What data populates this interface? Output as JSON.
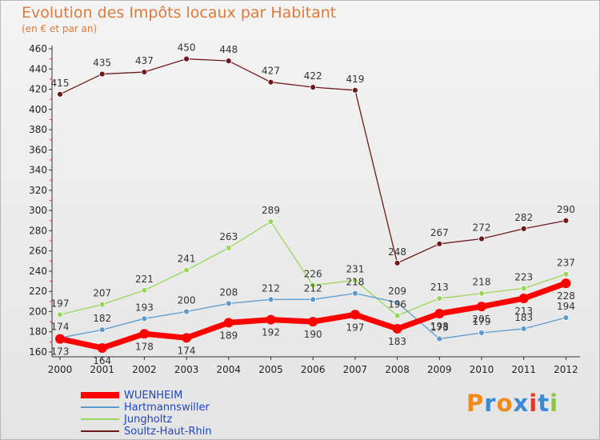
{
  "title": "Evolution des Impôts locaux par Habitant",
  "subtitle": "(en € et par an)",
  "logo": {
    "text": "Proxiti",
    "colors": [
      "#f08a1c",
      "#3a8ad6",
      "#f08a1c",
      "#3a8ad6",
      "#e23a2a",
      "#3a8ad6",
      "#8cc63e"
    ]
  },
  "chart_data": {
    "type": "line",
    "categories": [
      "2000",
      "2001",
      "2002",
      "2003",
      "2004",
      "2005",
      "2006",
      "2007",
      "2008",
      "2009",
      "2010",
      "2011",
      "2012"
    ],
    "ylim": [
      160,
      460
    ],
    "yticks": [
      160,
      180,
      200,
      220,
      240,
      260,
      280,
      300,
      320,
      340,
      360,
      380,
      400,
      420,
      440,
      460
    ],
    "grid": false,
    "legend_position": "bottom-left",
    "series": [
      {
        "name": "Soultz-Haut-Rhin",
        "color": "#6e1a1a",
        "values": [
          415,
          435,
          437,
          450,
          448,
          427,
          422,
          419,
          248,
          267,
          272,
          282,
          290
        ]
      },
      {
        "name": "Jungholtz",
        "color": "#9ad65a",
        "values": [
          197,
          207,
          221,
          241,
          263,
          289,
          226,
          231,
          196,
          213,
          218,
          223,
          237
        ]
      },
      {
        "name": "Hartmannswiller",
        "color": "#5b9bd0",
        "values": [
          174,
          182,
          193,
          200,
          208,
          212,
          212,
          218,
          209,
          173,
          179,
          183,
          194
        ]
      },
      {
        "name": "WUENHEIM",
        "color": "#ff0000",
        "values": [
          173,
          164,
          178,
          174,
          189,
          192,
          190,
          197,
          183,
          198,
          205,
          213,
          228
        ]
      }
    ]
  },
  "legend": [
    {
      "name": "WUENHEIM",
      "color": "#ff0000"
    },
    {
      "name": "Hartmannswiller",
      "color": "#5b9bd0"
    },
    {
      "name": "Jungholtz",
      "color": "#9ad65a"
    },
    {
      "name": "Soultz-Haut-Rhin",
      "color": "#6e1a1a"
    }
  ]
}
